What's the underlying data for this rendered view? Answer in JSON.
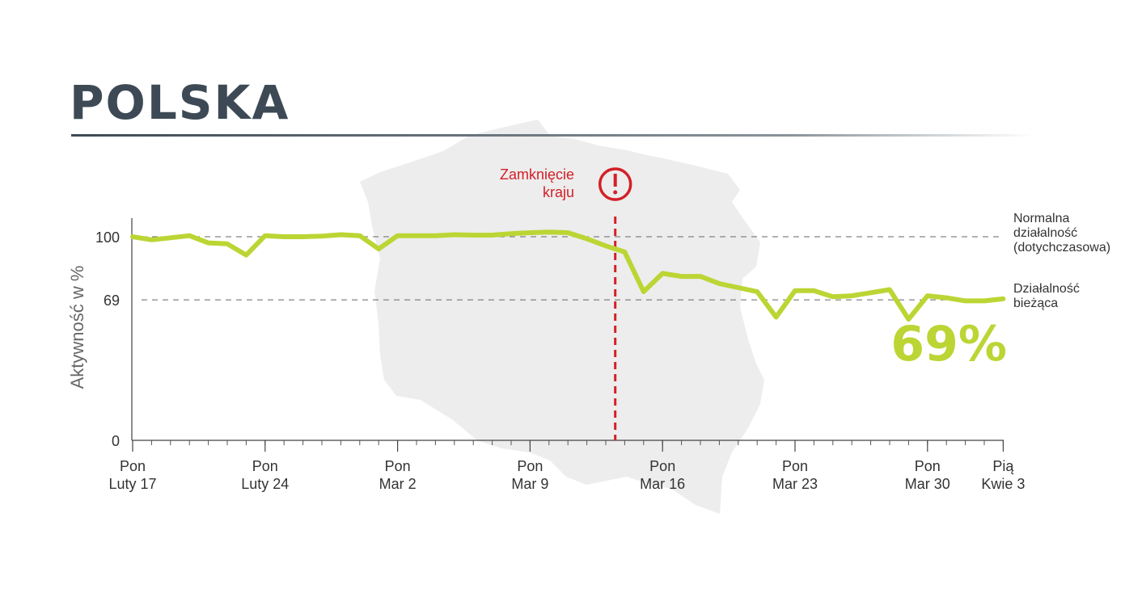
{
  "title": "POLSKA",
  "colors": {
    "line": "#bcd534",
    "title": "#3d4a55",
    "accent": "#d32027",
    "axis": "#555555",
    "map": "#ededed"
  },
  "icons": {
    "alert": "exclamation-circle-icon"
  },
  "chart_data": {
    "type": "line",
    "title": "POLSKA",
    "ylabel": "Aktywność w %",
    "xlabel": "",
    "ylim": [
      0,
      115
    ],
    "yticks": [
      {
        "value": 0,
        "label": "0"
      },
      {
        "value": 69,
        "label": "69"
      },
      {
        "value": 100,
        "label": "100"
      }
    ],
    "xticks": [
      {
        "day": 0,
        "line1": "Pon",
        "line2": "Luty 17"
      },
      {
        "day": 7,
        "line1": "Pon",
        "line2": "Luty 24"
      },
      {
        "day": 14,
        "line1": "Pon",
        "line2": "Mar 2"
      },
      {
        "day": 21,
        "line1": "Pon",
        "line2": "Mar 9"
      },
      {
        "day": 28,
        "line1": "Pon",
        "line2": "Mar 16"
      },
      {
        "day": 35,
        "line1": "Pon",
        "line2": "Mar 23"
      },
      {
        "day": 42,
        "line1": "Pon",
        "line2": "Mar 30"
      },
      {
        "day": 46,
        "line1": "Pią",
        "line2": "Kwie 3"
      }
    ],
    "series": [
      {
        "values": [
          {
            "x": 0,
            "y": 100
          },
          {
            "x": 1,
            "y": 98.5
          },
          {
            "x": 2,
            "y": 99.5
          },
          {
            "x": 3,
            "y": 100.5
          },
          {
            "x": 4,
            "y": 97
          },
          {
            "x": 5,
            "y": 96.5
          },
          {
            "x": 6,
            "y": 91
          },
          {
            "x": 7,
            "y": 100.5
          },
          {
            "x": 8,
            "y": 100
          },
          {
            "x": 9,
            "y": 100
          },
          {
            "x": 10,
            "y": 100.3
          },
          {
            "x": 11,
            "y": 101
          },
          {
            "x": 12,
            "y": 100.5
          },
          {
            "x": 13,
            "y": 94
          },
          {
            "x": 14,
            "y": 100.5
          },
          {
            "x": 15,
            "y": 100.5
          },
          {
            "x": 16,
            "y": 100.5
          },
          {
            "x": 17,
            "y": 101
          },
          {
            "x": 18,
            "y": 100.8
          },
          {
            "x": 19,
            "y": 100.8
          },
          {
            "x": 20,
            "y": 101.5
          },
          {
            "x": 21,
            "y": 102
          },
          {
            "x": 22,
            "y": 102.3
          },
          {
            "x": 23,
            "y": 102
          },
          {
            "x": 24,
            "y": 99
          },
          {
            "x": 25,
            "y": 95.5
          },
          {
            "x": 26,
            "y": 92.5
          },
          {
            "x": 27,
            "y": 73
          },
          {
            "x": 28,
            "y": 82
          },
          {
            "x": 29,
            "y": 80.5
          },
          {
            "x": 30,
            "y": 80.5
          },
          {
            "x": 31,
            "y": 77
          },
          {
            "x": 32,
            "y": 75
          },
          {
            "x": 33,
            "y": 73
          },
          {
            "x": 34,
            "y": 60.5
          },
          {
            "x": 35,
            "y": 73.5
          },
          {
            "x": 36,
            "y": 73.5
          },
          {
            "x": 37,
            "y": 70.5
          },
          {
            "x": 38,
            "y": 71
          },
          {
            "x": 39,
            "y": 72.5
          },
          {
            "x": 40,
            "y": 74
          },
          {
            "x": 41,
            "y": 59.5
          },
          {
            "x": 42,
            "y": 71
          },
          {
            "x": 43,
            "y": 70
          },
          {
            "x": 44,
            "y": 68.5
          },
          {
            "x": 45,
            "y": 68.5
          },
          {
            "x": 46,
            "y": 69.5
          }
        ]
      }
    ],
    "reference_lines": [
      {
        "value": 100,
        "label_lines": [
          "Normalna",
          "działalność",
          "(dotychczasowa)"
        ]
      },
      {
        "value": 69,
        "label_lines": [
          "Działalność",
          "bieżąca"
        ]
      }
    ],
    "event": {
      "day": 25.5,
      "label_lines": [
        "Zamknięcie",
        "kraju"
      ]
    },
    "big_value": "69%",
    "grid": false
  }
}
